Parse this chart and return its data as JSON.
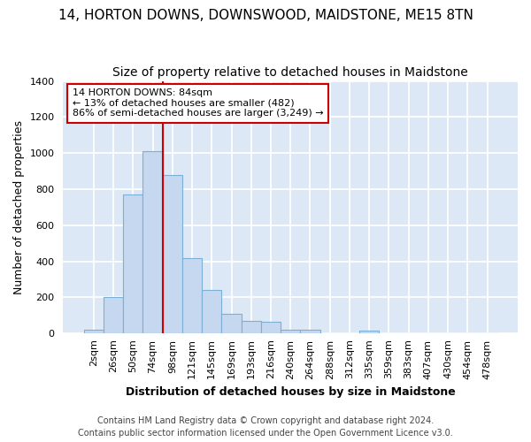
{
  "title": "14, HORTON DOWNS, DOWNSWOOD, MAIDSTONE, ME15 8TN",
  "subtitle": "Size of property relative to detached houses in Maidstone",
  "xlabel": "Distribution of detached houses by size in Maidstone",
  "ylabel": "Number of detached properties",
  "footnote1": "Contains HM Land Registry data © Crown copyright and database right 2024.",
  "footnote2": "Contains public sector information licensed under the Open Government Licence v3.0.",
  "bar_labels": [
    "2sqm",
    "26sqm",
    "50sqm",
    "74sqm",
    "98sqm",
    "121sqm",
    "145sqm",
    "169sqm",
    "193sqm",
    "216sqm",
    "240sqm",
    "264sqm",
    "288sqm",
    "312sqm",
    "335sqm",
    "359sqm",
    "383sqm",
    "407sqm",
    "430sqm",
    "454sqm",
    "478sqm"
  ],
  "bar_values": [
    20,
    200,
    770,
    1010,
    880,
    420,
    240,
    108,
    70,
    65,
    22,
    20,
    0,
    0,
    14,
    0,
    0,
    0,
    0,
    0,
    0
  ],
  "bar_color": "#c5d8f0",
  "bar_edge_color": "#7bafd4",
  "annotation_text_line1": "14 HORTON DOWNS: 84sqm",
  "annotation_text_line2": "← 13% of detached houses are smaller (482)",
  "annotation_text_line3": "86% of semi-detached houses are larger (3,249) →",
  "annotation_box_facecolor": "#ffffff",
  "annotation_box_edgecolor": "#cc0000",
  "red_line_color": "#cc0000",
  "ylim": [
    0,
    1400
  ],
  "yticks": [
    0,
    200,
    400,
    600,
    800,
    1000,
    1200,
    1400
  ],
  "fig_bg_color": "#ffffff",
  "plot_bg_color": "#dce8f5",
  "grid_color": "#ffffff",
  "title_fontsize": 11,
  "subtitle_fontsize": 10,
  "xlabel_fontsize": 9,
  "ylabel_fontsize": 9,
  "tick_fontsize": 8,
  "footnote_fontsize": 7
}
